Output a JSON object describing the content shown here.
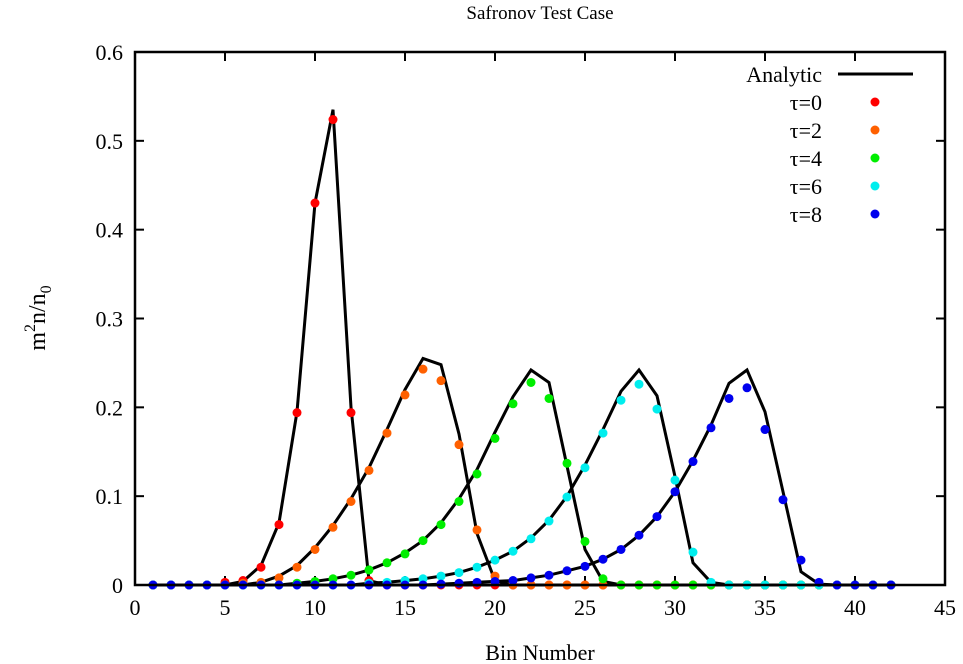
{
  "chart_data": {
    "type": "scatter",
    "title": "Safronov Test Case",
    "xlabel": "Bin Number",
    "ylabel_main": "m",
    "ylabel_sup": "2",
    "ylabel_mid": "n/n",
    "ylabel_sub": "0",
    "xlim": [
      0,
      45
    ],
    "ylim": [
      0,
      0.6
    ],
    "xticks": [
      "0",
      "5",
      "10",
      "15",
      "20",
      "25",
      "30",
      "35",
      "40",
      "45"
    ],
    "yticks": [
      "0",
      "0.1",
      "0.2",
      "0.3",
      "0.4",
      "0.5",
      "0.6"
    ],
    "grid": false,
    "legend_position": "top-right",
    "x": [
      1,
      2,
      3,
      4,
      5,
      6,
      7,
      8,
      9,
      10,
      11,
      12,
      13,
      14,
      15,
      16,
      17,
      18,
      19,
      20,
      21,
      22,
      23,
      24,
      25,
      26,
      27,
      28,
      29,
      30,
      31,
      32,
      33,
      34,
      35,
      36,
      37,
      38,
      39,
      40,
      41,
      42
    ],
    "analytic": {
      "name": "Analytic",
      "color": "#000000",
      "curves": [
        [
          0,
          0,
          0,
          0,
          0,
          0.004,
          0.022,
          0.07,
          0.195,
          0.43,
          0.535,
          0.2,
          0.005,
          0,
          0,
          0,
          0,
          0,
          0,
          0,
          0,
          0,
          0,
          0,
          0,
          0,
          0,
          0,
          0,
          0,
          0,
          0,
          0,
          0,
          0,
          0,
          0,
          0,
          0,
          0,
          0,
          0
        ],
        [
          0,
          0,
          0,
          0,
          0,
          0,
          0.003,
          0.01,
          0.022,
          0.042,
          0.067,
          0.097,
          0.132,
          0.175,
          0.22,
          0.255,
          0.248,
          0.17,
          0.058,
          0.005,
          0,
          0,
          0,
          0,
          0,
          0,
          0,
          0,
          0,
          0,
          0,
          0,
          0,
          0,
          0,
          0,
          0,
          0,
          0,
          0,
          0,
          0
        ],
        [
          0,
          0,
          0,
          0,
          0,
          0,
          0,
          0,
          0.002,
          0.004,
          0.007,
          0.011,
          0.017,
          0.025,
          0.036,
          0.05,
          0.07,
          0.097,
          0.13,
          0.172,
          0.212,
          0.242,
          0.228,
          0.134,
          0.04,
          0.004,
          0,
          0,
          0,
          0,
          0,
          0,
          0,
          0,
          0,
          0,
          0,
          0,
          0,
          0,
          0,
          0
        ],
        [
          0,
          0,
          0,
          0,
          0,
          0,
          0,
          0,
          0,
          0,
          0,
          0,
          0.002,
          0.003,
          0.005,
          0.007,
          0.01,
          0.014,
          0.02,
          0.028,
          0.038,
          0.053,
          0.073,
          0.1,
          0.135,
          0.175,
          0.218,
          0.242,
          0.213,
          0.122,
          0.025,
          0.003,
          0,
          0,
          0,
          0,
          0,
          0,
          0,
          0,
          0,
          0
        ],
        [
          0,
          0,
          0,
          0,
          0,
          0,
          0,
          0,
          0,
          0,
          0,
          0,
          0,
          0,
          0,
          0,
          0.001,
          0.002,
          0.003,
          0.004,
          0.005,
          0.008,
          0.011,
          0.016,
          0.021,
          0.029,
          0.04,
          0.056,
          0.077,
          0.105,
          0.14,
          0.18,
          0.227,
          0.242,
          0.195,
          0.105,
          0.015,
          0.001,
          0,
          0,
          0,
          0
        ]
      ]
    },
    "series": [
      {
        "name": "τ=0",
        "color": "#ff0000",
        "values": [
          0,
          0,
          0,
          0,
          0.003,
          0.005,
          0.02,
          0.068,
          0.194,
          0.43,
          0.524,
          0.194,
          0.005,
          0,
          0,
          0,
          0,
          0,
          0,
          0,
          0,
          0,
          0,
          0,
          0,
          0,
          0,
          0,
          0,
          0,
          0,
          0,
          0,
          0,
          0,
          0,
          0,
          0,
          0,
          0,
          0,
          0
        ]
      },
      {
        "name": "τ=2",
        "color": "#ff6000",
        "values": [
          0,
          0,
          0,
          0,
          0,
          0.002,
          0.003,
          0.008,
          0.02,
          0.04,
          0.065,
          0.094,
          0.129,
          0.171,
          0.214,
          0.243,
          0.23,
          0.158,
          0.062,
          0.01,
          0,
          0,
          0,
          0,
          0,
          0,
          0,
          0,
          0,
          0,
          0,
          0,
          0,
          0,
          0,
          0,
          0,
          0,
          0,
          0,
          0,
          0
        ]
      },
      {
        "name": "τ=4",
        "color": "#00ee00",
        "values": [
          0,
          0,
          0,
          0,
          0,
          0,
          0,
          0,
          0.002,
          0.004,
          0.007,
          0.011,
          0.017,
          0.025,
          0.035,
          0.05,
          0.068,
          0.094,
          0.125,
          0.165,
          0.204,
          0.228,
          0.21,
          0.137,
          0.049,
          0.007,
          0,
          0,
          0,
          0,
          0,
          0,
          0,
          0,
          0,
          0,
          0,
          0,
          0,
          0,
          0,
          0
        ]
      },
      {
        "name": "τ=6",
        "color": "#00eeee",
        "values": [
          0,
          0,
          0,
          0,
          0,
          0,
          0,
          0,
          0,
          0,
          0,
          0,
          0.002,
          0.003,
          0.005,
          0.007,
          0.01,
          0.014,
          0.02,
          0.028,
          0.038,
          0.052,
          0.072,
          0.099,
          0.132,
          0.171,
          0.208,
          0.226,
          0.198,
          0.118,
          0.037,
          0.003,
          0,
          0,
          0,
          0,
          0,
          0,
          0,
          0,
          0,
          0
        ]
      },
      {
        "name": "τ=8",
        "color": "#0000ee",
        "values": [
          0,
          0,
          0,
          0,
          0,
          0,
          0,
          0,
          0,
          0,
          0,
          0,
          0,
          0,
          0,
          0,
          0.001,
          0.002,
          0.003,
          0.004,
          0.005,
          0.008,
          0.011,
          0.016,
          0.021,
          0.029,
          0.04,
          0.056,
          0.077,
          0.105,
          0.139,
          0.177,
          0.21,
          0.222,
          0.175,
          0.096,
          0.028,
          0.003,
          0,
          0,
          0,
          0
        ]
      }
    ]
  }
}
